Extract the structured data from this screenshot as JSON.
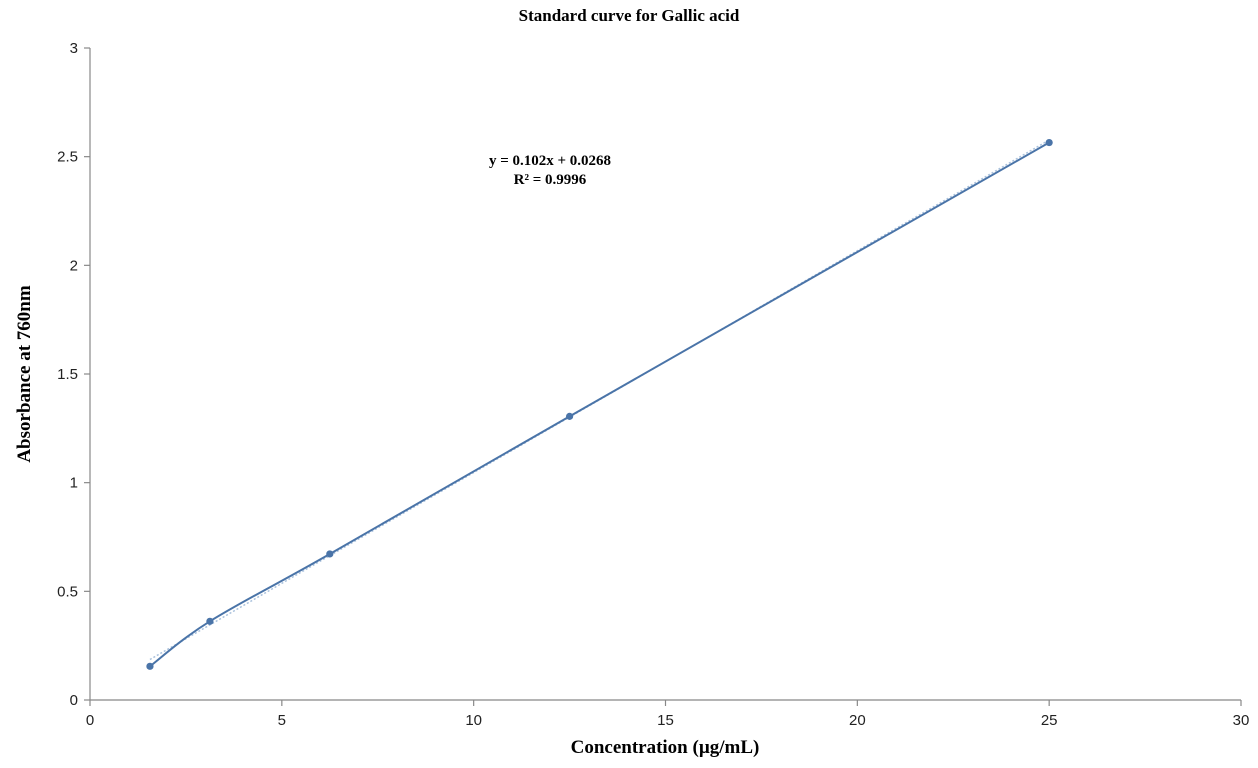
{
  "chart_data": {
    "type": "scatter",
    "title": "Standard curve for Gallic acid",
    "xlabel": "Concentration (µg/mL)",
    "ylabel": "Absorbance at 760nm",
    "xlim": [
      0,
      30
    ],
    "ylim": [
      0,
      3
    ],
    "xticks": [
      0,
      5,
      10,
      15,
      20,
      25,
      30
    ],
    "yticks": [
      0,
      0.5,
      1,
      1.5,
      2,
      2.5,
      3
    ],
    "series": [
      {
        "x": [
          1.5625,
          3.125,
          6.25,
          12.5,
          25
        ],
        "y": [
          0.155,
          0.362,
          0.672,
          1.305,
          2.565
        ],
        "color": "#4a74a8",
        "line": "smoothed"
      }
    ],
    "trendline": {
      "type": "linear",
      "slope": 0.102,
      "intercept": 0.0268,
      "color": "#a9c1dc",
      "equation_label": "y = 0.102x + 0.0268",
      "r2_label": "R² = 0.9996"
    },
    "grid": false,
    "legend": "none"
  }
}
